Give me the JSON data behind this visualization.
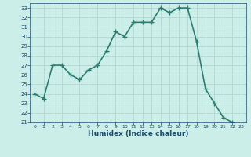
{
  "x": [
    0,
    1,
    2,
    3,
    4,
    5,
    6,
    7,
    8,
    9,
    10,
    11,
    12,
    13,
    14,
    15,
    16,
    17,
    18,
    19,
    20,
    21,
    22,
    23
  ],
  "y": [
    24.0,
    23.5,
    27.0,
    27.0,
    26.0,
    25.5,
    26.5,
    27.0,
    28.5,
    30.5,
    30.0,
    31.5,
    31.5,
    31.5,
    33.0,
    32.5,
    33.0,
    33.0,
    29.5,
    24.5,
    23.0,
    21.5,
    21.0,
    20.8
  ],
  "line_color": "#2a7d70",
  "marker": "+",
  "marker_size": 4,
  "bg_color": "#cceee8",
  "grid_color": "#aad4cc",
  "xlabel": "Humidex (Indice chaleur)",
  "xlabel_color": "#1a4a6e",
  "tick_color": "#1a4a6e",
  "xlim": [
    -0.5,
    23.5
  ],
  "ylim": [
    21,
    33.5
  ],
  "yticks": [
    21,
    22,
    23,
    24,
    25,
    26,
    27,
    28,
    29,
    30,
    31,
    32,
    33
  ],
  "xticks": [
    0,
    1,
    2,
    3,
    4,
    5,
    6,
    7,
    8,
    9,
    10,
    11,
    12,
    13,
    14,
    15,
    16,
    17,
    18,
    19,
    20,
    21,
    22,
    23
  ],
  "line_width": 1.2,
  "fig_width": 3.2,
  "fig_height": 2.0,
  "dpi": 100
}
